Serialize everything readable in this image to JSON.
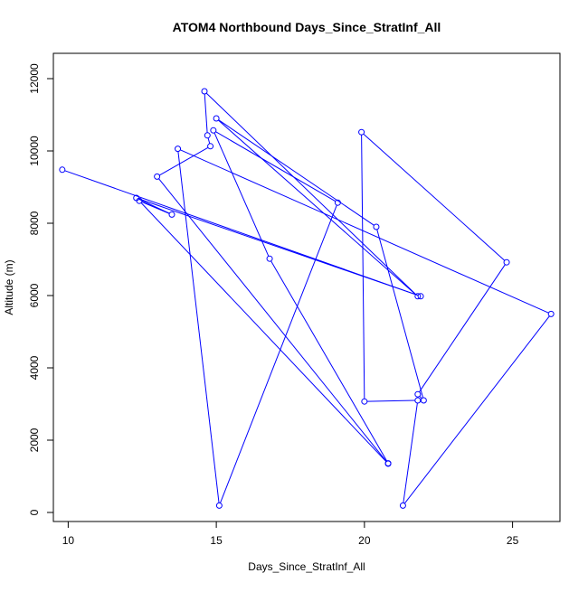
{
  "chart_data": {
    "type": "line",
    "title": "ATOM4 Northbound Days_Since_StratInf_All",
    "xlabel": "Days_Since_StratInf_All",
    "ylabel": "Altitude (m)",
    "xlim": [
      9.5,
      26.6
    ],
    "ylim": [
      -250,
      12700
    ],
    "xticks": [
      10,
      15,
      20,
      25
    ],
    "yticks": [
      0,
      2000,
      4000,
      6000,
      8000,
      10000,
      12000
    ],
    "grid": false,
    "legend": "none",
    "series": [
      {
        "color": "#0000ff",
        "marker": "open-circle",
        "points": [
          [
            9.8,
            9480
          ],
          [
            21.9,
            5980
          ],
          [
            12.3,
            8700
          ],
          [
            13.5,
            8240
          ],
          [
            12.4,
            8620
          ],
          [
            20.8,
            1350
          ],
          [
            13.0,
            9290
          ],
          [
            14.8,
            10130
          ],
          [
            14.7,
            10430
          ],
          [
            14.6,
            11650
          ],
          [
            21.8,
            5980
          ],
          [
            15.0,
            10900
          ],
          [
            20.4,
            7900
          ],
          [
            22.0,
            3100
          ],
          [
            21.8,
            3270
          ],
          [
            24.8,
            6920
          ],
          [
            19.9,
            10520
          ],
          [
            20.0,
            3070
          ],
          [
            21.8,
            3100
          ],
          [
            21.3,
            190
          ],
          [
            26.3,
            5490
          ],
          [
            13.7,
            10060
          ],
          [
            15.1,
            190
          ],
          [
            19.1,
            8570
          ],
          [
            14.9,
            10570
          ],
          [
            16.8,
            7020
          ],
          [
            20.8,
            1360
          ]
        ]
      }
    ]
  }
}
